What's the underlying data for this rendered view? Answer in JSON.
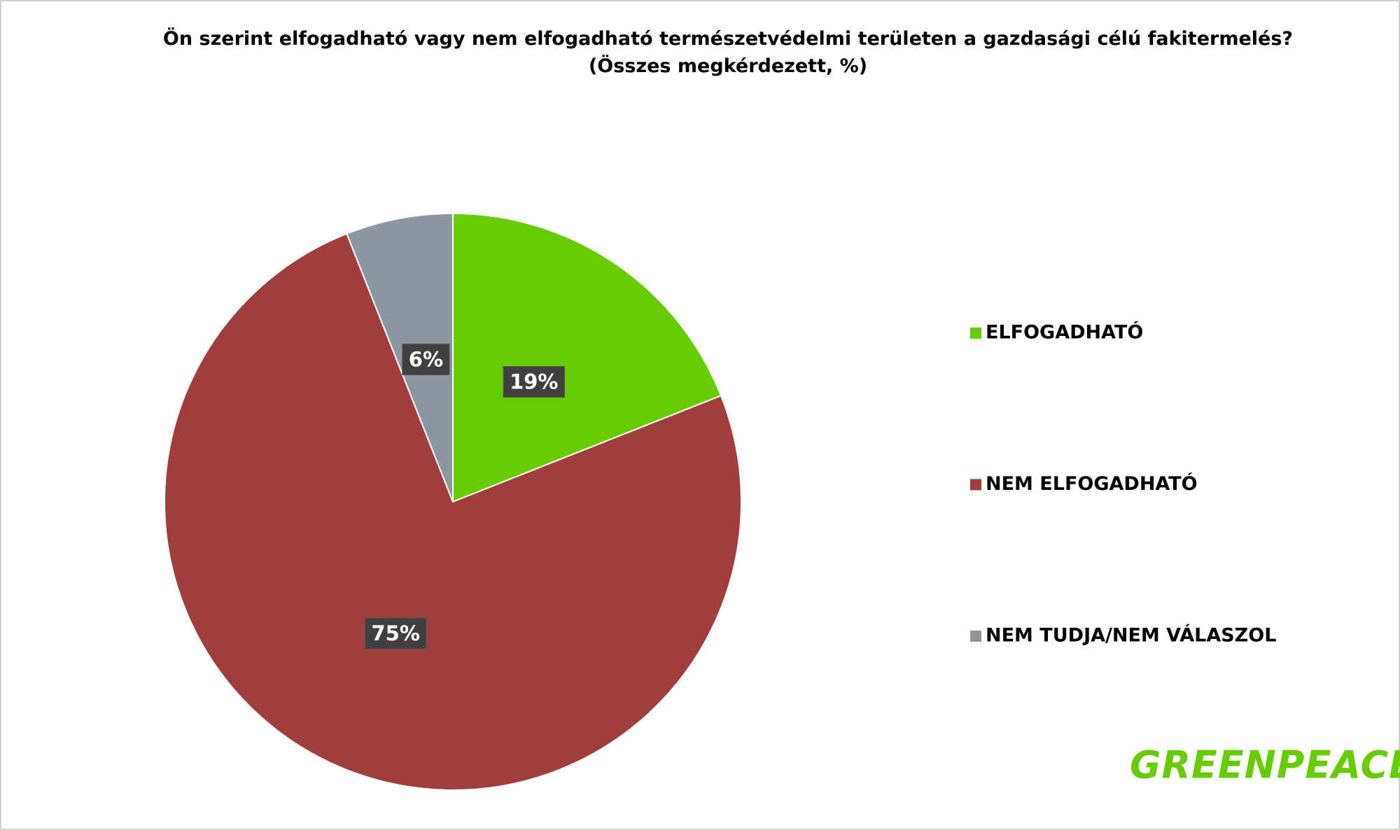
{
  "chart_data": {
    "type": "pie",
    "title": "Ön szerint elfogadható vagy nem elfogadható természetvédelmi területen a gazdasági célú fakitermelés?",
    "subtitle": "(Összes megkérdezett, %)",
    "categories": [
      "ELFOGADHATÓ",
      "NEM ELFOGADHATÓ",
      "NEM TUDJA/NEM VÁLASZOL"
    ],
    "values": [
      19,
      75,
      6
    ],
    "value_labels": [
      "19%",
      "75%",
      "6%"
    ],
    "colors": [
      "#66cc00",
      "#a03d3f",
      "#8c96a1"
    ],
    "legend": "right"
  },
  "logo": "GREENPEACE"
}
